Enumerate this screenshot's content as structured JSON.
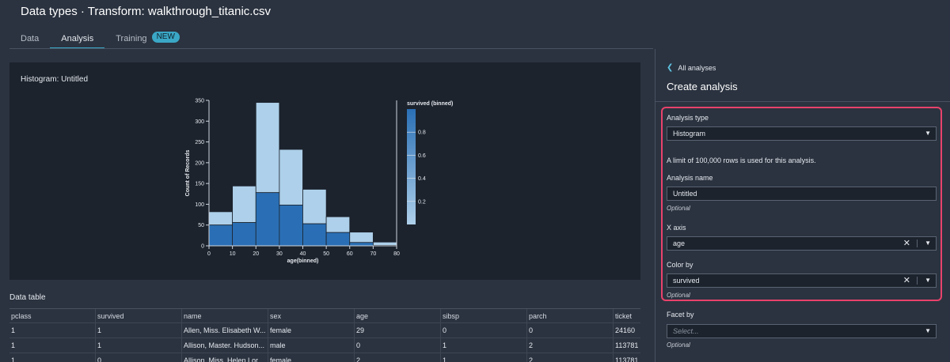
{
  "header": {
    "title": "Data types · Transform: walkthrough_titanic.csv"
  },
  "tabs": [
    {
      "label": "Data",
      "active": false
    },
    {
      "label": "Analysis",
      "active": true
    },
    {
      "label": "Training",
      "active": false,
      "badge": "NEW"
    }
  ],
  "chart_card": {
    "title": "Histogram: Untitled"
  },
  "chart_data": {
    "type": "bar",
    "stacked": true,
    "xlabel": "age(binned)",
    "ylabel": "Count of Records",
    "x_ticks": [
      0,
      10,
      20,
      30,
      40,
      50,
      60,
      70,
      80
    ],
    "y_ticks": [
      0,
      50,
      100,
      150,
      200,
      250,
      300,
      350
    ],
    "ylim": [
      0,
      350
    ],
    "xlim": [
      0,
      80
    ],
    "bins": [
      {
        "start": 0,
        "end": 10,
        "survived": 50,
        "total": 82
      },
      {
        "start": 10,
        "end": 20,
        "survived": 56,
        "total": 144
      },
      {
        "start": 20,
        "end": 30,
        "survived": 128,
        "total": 345
      },
      {
        "start": 30,
        "end": 40,
        "survived": 98,
        "total": 232
      },
      {
        "start": 40,
        "end": 50,
        "survived": 53,
        "total": 136
      },
      {
        "start": 50,
        "end": 60,
        "survived": 32,
        "total": 70
      },
      {
        "start": 60,
        "end": 70,
        "survived": 8,
        "total": 33
      },
      {
        "start": 70,
        "end": 80,
        "survived": 1,
        "total": 9
      }
    ],
    "legend": {
      "title": "survived (binned)",
      "ticks": [
        0.2,
        0.4,
        0.6,
        0.8
      ],
      "placement": "right"
    },
    "colors": {
      "survived": "#2a6fb5",
      "not_survived": "#aed0ea"
    }
  },
  "data_table": {
    "title": "Data table",
    "columns": [
      "pclass",
      "survived",
      "name",
      "sex",
      "age",
      "sibsp",
      "parch",
      "ticket"
    ],
    "rows": [
      [
        "1",
        "1",
        "Allen, Miss. Elisabeth W...",
        "female",
        "29",
        "0",
        "0",
        "24160"
      ],
      [
        "1",
        "1",
        "Allison, Master. Hudson...",
        "male",
        "0",
        "1",
        "2",
        "113781"
      ],
      [
        "1",
        "0",
        "Allison, Miss. Helen Lor...",
        "female",
        "2",
        "1",
        "2",
        "113781"
      ]
    ]
  },
  "panel": {
    "back_label": "All analyses",
    "title": "Create analysis",
    "analysis_type_label": "Analysis type",
    "analysis_type_value": "Histogram",
    "limit_note": "A limit of 100,000 rows is used for this analysis.",
    "analysis_name_label": "Analysis name",
    "analysis_name_value": "Untitled",
    "optional": "Optional",
    "x_axis_label": "X axis",
    "x_axis_value": "age",
    "color_by_label": "Color by",
    "color_by_value": "survived",
    "facet_by_label": "Facet by",
    "facet_by_placeholder": "Select..."
  }
}
